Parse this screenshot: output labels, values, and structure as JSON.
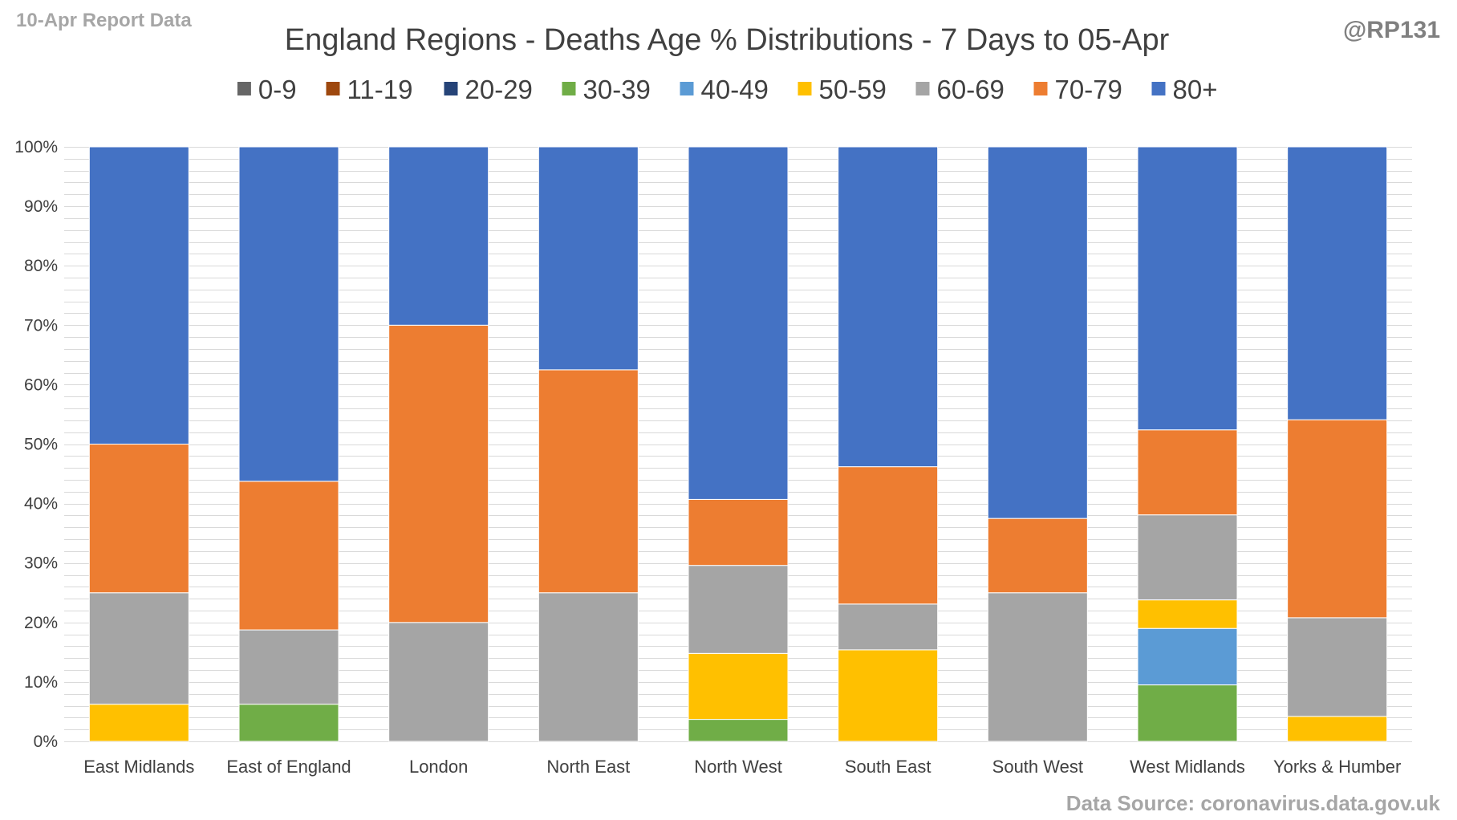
{
  "header": {
    "report_label": "10-Apr Report Data",
    "author": "@RP131"
  },
  "footer": {
    "source": "Data Source: coronavirus.data.gov.uk"
  },
  "chart_data": {
    "type": "bar",
    "stacked": "percent",
    "title": "England Regions - Deaths Age % Distributions - 7 Days to 05-Apr",
    "xlabel": "",
    "ylabel": "",
    "ylim": [
      0,
      100
    ],
    "y_ticks": [
      "0%",
      "10%",
      "20%",
      "30%",
      "40%",
      "50%",
      "60%",
      "70%",
      "80%",
      "90%",
      "100%"
    ],
    "grid": true,
    "legend_position": "top",
    "categories": [
      "East Midlands",
      "East of England",
      "London",
      "North East",
      "North West",
      "South East",
      "South West",
      "West Midlands",
      "Yorks & Humber"
    ],
    "series": [
      {
        "name": "0-9",
        "color": "#666666",
        "values": [
          0,
          0,
          0,
          0,
          0,
          0,
          0,
          0,
          0
        ]
      },
      {
        "name": "11-19",
        "color": "#9e480e",
        "values": [
          0,
          0,
          0,
          0,
          0,
          0,
          0,
          0,
          0
        ]
      },
      {
        "name": "20-29",
        "color": "#264478",
        "values": [
          0,
          0,
          0,
          0,
          0,
          0,
          0,
          0,
          0
        ]
      },
      {
        "name": "30-39",
        "color": "#70ad47",
        "values": [
          0,
          6.25,
          0,
          0,
          3.7,
          0,
          0,
          9.5,
          0
        ]
      },
      {
        "name": "40-49",
        "color": "#5b9bd5",
        "values": [
          0,
          0,
          0,
          0,
          0,
          0,
          0,
          9.5,
          0
        ]
      },
      {
        "name": "50-59",
        "color": "#ffc000",
        "values": [
          6.25,
          0,
          0,
          0,
          11.1,
          15.4,
          0,
          4.8,
          4.2
        ]
      },
      {
        "name": "60-69",
        "color": "#a5a5a5",
        "values": [
          18.75,
          12.5,
          20,
          25,
          14.8,
          7.7,
          25,
          14.3,
          16.6
        ]
      },
      {
        "name": "70-79",
        "color": "#ed7d31",
        "values": [
          25,
          25,
          50,
          37.5,
          11.1,
          23.1,
          12.5,
          14.3,
          33.3
        ]
      },
      {
        "name": "80+",
        "color": "#4472c4",
        "values": [
          50,
          56.25,
          30,
          37.5,
          59.3,
          53.8,
          62.5,
          47.6,
          45.9
        ]
      }
    ]
  }
}
